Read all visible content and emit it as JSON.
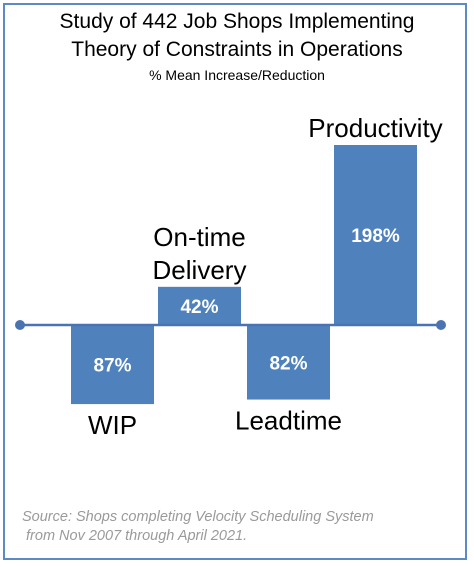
{
  "chart_data": {
    "type": "bar",
    "title": "Study of 442 Job Shops Implementing",
    "title_line2": "Theory of Constraints in Operations",
    "subtitle": "% Mean Increase/Reduction",
    "categories": [
      {
        "label": "WIP",
        "value_label": "87%",
        "value": -87,
        "direction": "down"
      },
      {
        "label": "On-time Delivery",
        "label_lines": [
          "On-time",
          "Delivery"
        ],
        "value_label": "42%",
        "value": 42,
        "direction": "up"
      },
      {
        "label": "Leadtime",
        "value_label": "82%",
        "value": -82,
        "direction": "down"
      },
      {
        "label": "Productivity",
        "value_label": "198%",
        "value": 198,
        "direction": "up"
      }
    ],
    "colors": {
      "bar": "#4f81bd",
      "axis": "#4a73b3",
      "frame": "#5b8ac4",
      "source": "#9a9a9a"
    },
    "grid": false,
    "legend": "none"
  },
  "source_lines": [
    "Source:  Shops completing Velocity Scheduling System",
    " from Nov 2007 through April 2021."
  ]
}
